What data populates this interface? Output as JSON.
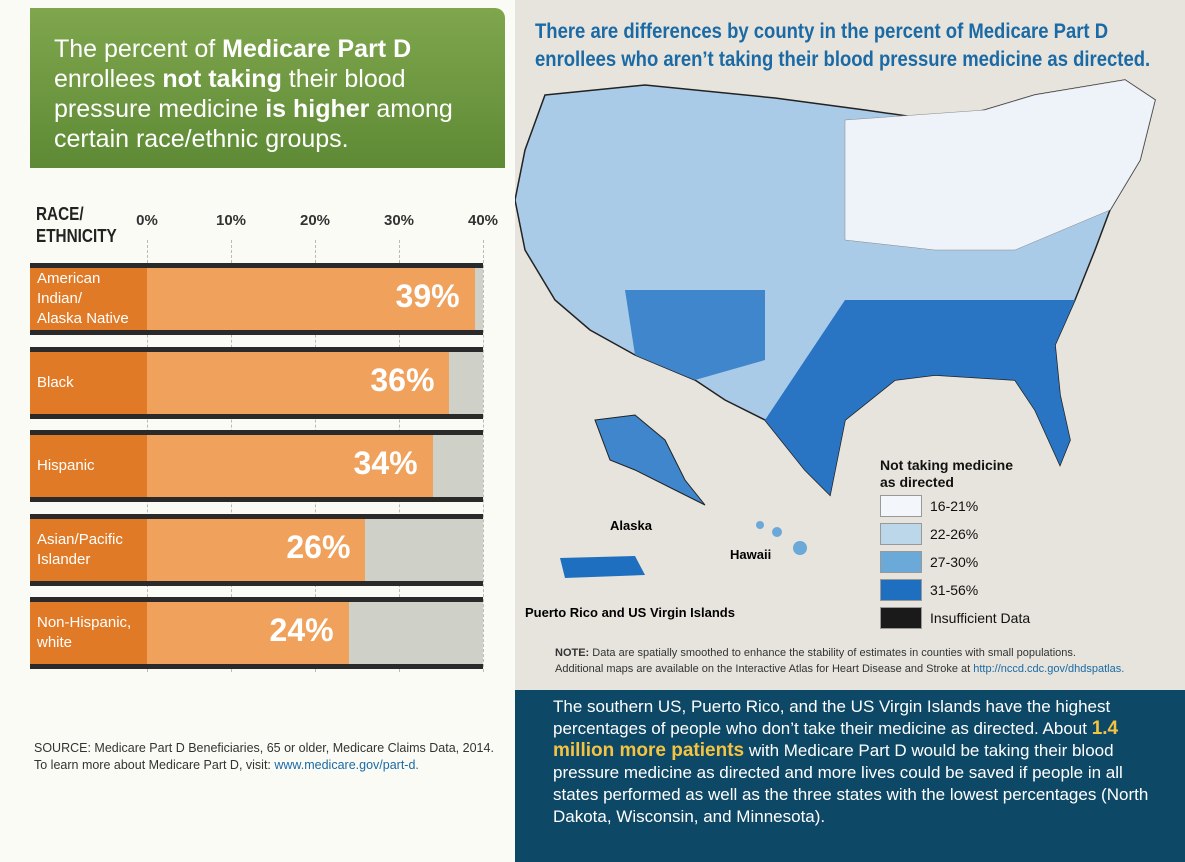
{
  "header": {
    "title_parts": [
      "The percent of ",
      "Medicare Part D",
      " enrollees ",
      "not taking",
      " their blood pressure medicine ",
      "is higher",
      " among certain race/ethnic groups."
    ]
  },
  "chart_data": {
    "type": "bar",
    "orientation": "horizontal",
    "y_axis_label": "RACE/\nETHNICITY",
    "categories": [
      "American Indian/\nAlaska Native",
      "Black",
      "Hispanic",
      "Asian/Pacific\nIslander",
      "Non-Hispanic,\nwhite"
    ],
    "values": [
      39,
      36,
      34,
      26,
      24
    ],
    "value_labels": [
      "39%",
      "36%",
      "34%",
      "26%",
      "24%"
    ],
    "color": "#f0a15c",
    "label_color": "#e07a26",
    "track_color": "#cfd1c8",
    "xlim": [
      0,
      40
    ],
    "xticks": [
      {
        "value": 0,
        "label": "0%"
      },
      {
        "value": 10,
        "label": "10%"
      },
      {
        "value": 20,
        "label": "20%"
      },
      {
        "value": 30,
        "label": "30%"
      },
      {
        "value": 40,
        "label": "40%"
      }
    ],
    "grid": true
  },
  "source": {
    "line1": "SOURCE: Medicare Part D Beneficiaries, 65 or older, Medicare Claims Data, 2014.",
    "line2": "To learn more about Medicare Part D, visit: ",
    "link": "www.medicare.gov/part-d."
  },
  "map": {
    "title": "There are differences by county in the percent of Medicare Part D enrollees who aren’t taking their blood pressure medicine as directed.",
    "labels": {
      "alaska": "Alaska",
      "hawaii": "Hawaii",
      "puerto_rico": "Puerto Rico and US Virgin Islands"
    },
    "legend": {
      "title": "Not taking medicine\nas directed",
      "items": [
        {
          "label": "16-21%",
          "color": "#f3f6fb"
        },
        {
          "label": "22-26%",
          "color": "#bcd6ea"
        },
        {
          "label": "27-30%",
          "color": "#6aa9d8"
        },
        {
          "label": "31-56%",
          "color": "#1f6fc0"
        },
        {
          "label": "Insufficient Data",
          "color": "#1a1a1a"
        }
      ]
    },
    "note": {
      "label": "NOTE:",
      "text": " Data are spatially smoothed to enhance the stability of estimates in counties with small populations.",
      "line2": "Additional maps are available on the Interactive Atlas for Heart Disease and Stroke at ",
      "link": "http://nccd.cdc.gov/dhdspatlas."
    }
  },
  "summary": {
    "parts": [
      "The southern US, Puerto Rico, and the US Virgin Islands have the highest percentages of people who don’t take their medicine as directed. About ",
      "1.4 million more patients",
      " with Medicare Part D would be taking their blood pressure medicine as directed and more lives could be saved if people in all states performed as well as the three states with the lowest percentages (North Dakota, Wisconsin, and Minnesota)."
    ]
  }
}
